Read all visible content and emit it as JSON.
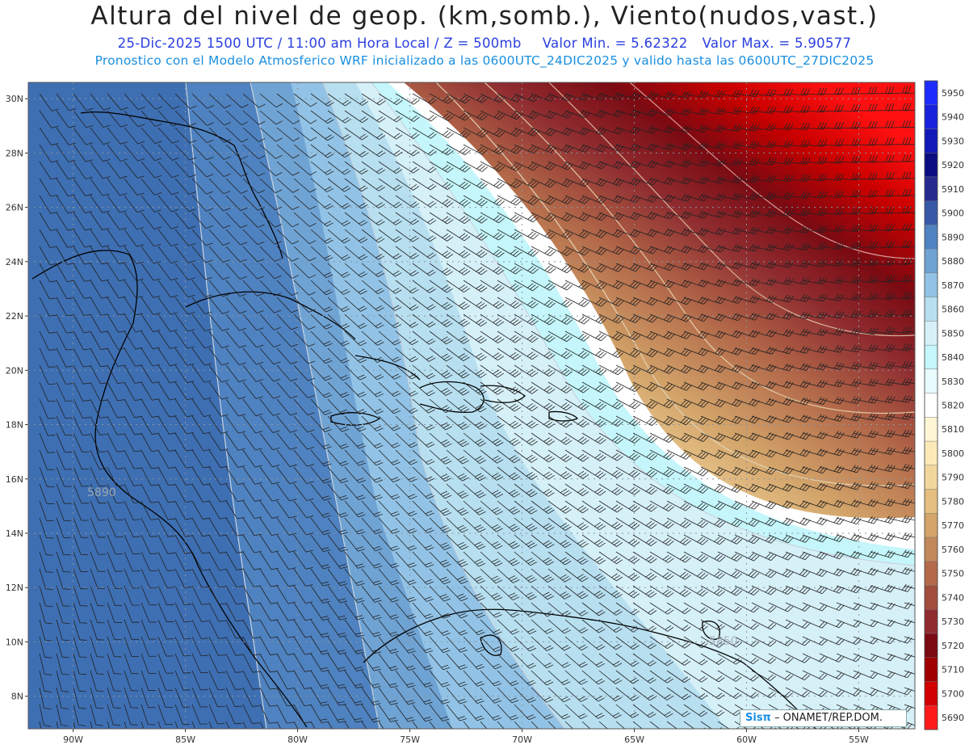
{
  "header": {
    "title": "Altura del nivel de geop. (km,somb.), Viento(nudos,vast.)",
    "subtitle_time": "25-Dic-2025  1500 UTC / 11:00 am Hora Local / Z = 500mb",
    "subtitle_min": "Valor Min. = 5.62322",
    "subtitle_max": "Valor Max. = 5.90577",
    "subtitle_model": "Pronostico con el Modelo Atmosferico WRF inicializado a las 0600UTC_24DIC2025 y valido hasta las  0600UTC_27DIC2025"
  },
  "map": {
    "lon_range": [
      -92,
      -52.5
    ],
    "lat_range": [
      6.8,
      30.6
    ],
    "lat_ticks": [
      "30N",
      "28N",
      "26N",
      "24N",
      "22N",
      "20N",
      "18N",
      "16N",
      "14N",
      "12N",
      "10N",
      "8N"
    ],
    "lon_ticks": [
      "90W",
      "85W",
      "80W",
      "75W",
      "70W",
      "65W",
      "60W",
      "55W"
    ],
    "contour_labels": [
      "5890",
      "5850"
    ],
    "grid": "dotted"
  },
  "colorbar": {
    "labels": [
      "5950",
      "5940",
      "5930",
      "5920",
      "5910",
      "5900",
      "5890",
      "5880",
      "5870",
      "5860",
      "5850",
      "5840",
      "5830",
      "5820",
      "5810",
      "5800",
      "5790",
      "5780",
      "5770",
      "5760",
      "5750",
      "5740",
      "5730",
      "5720",
      "5710",
      "5700",
      "5690"
    ],
    "colors": [
      "#1f2cff",
      "#1822dd",
      "#1119b8",
      "#0a0e80",
      "#262a8e",
      "#3859a8",
      "#4f82c0",
      "#6fa3d4",
      "#92c3e6",
      "#b7dff0",
      "#d6f0f8",
      "#c4f6fb",
      "#e8fbfd",
      "#ffffff",
      "#fff6d6",
      "#fbeab8",
      "#f2d79c",
      "#e4bf80",
      "#d3a569",
      "#c3885a",
      "#b3694a",
      "#a24c3c",
      "#8f2c30",
      "#7b0a12",
      "#a00000",
      "#d20000",
      "#ff1a1a"
    ]
  },
  "credit": {
    "brand": "Sisπ",
    "text": " – ONAMET/REP.DOM."
  }
}
